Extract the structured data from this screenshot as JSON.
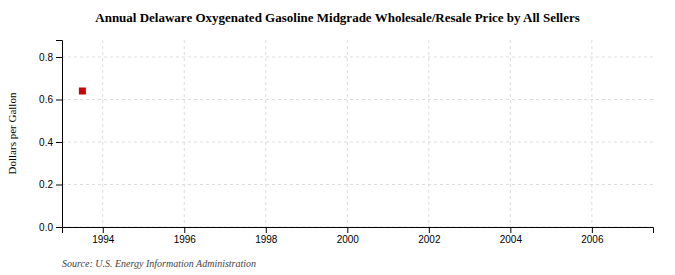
{
  "chart_data": {
    "type": "scatter",
    "title": "Annual Delaware Oxygenated Gasoline Midgrade Wholesale/Resale Price by All Sellers",
    "ylabel": "Dollars per Gallon",
    "source": "Source: U.S. Energy Information Administration",
    "x": [
      1993.5
    ],
    "values": [
      0.64
    ],
    "color": "#cc0000",
    "marker": "square",
    "xlim": [
      1993.0,
      2007.5
    ],
    "xticks": [
      1994,
      1996,
      1998,
      2000,
      2002,
      2004,
      2006
    ],
    "ylim": [
      0.0,
      0.88
    ],
    "yticks": [
      {
        "value": 0.0,
        "label": "0.0"
      },
      0.2,
      0.4,
      0.6,
      0.8
    ],
    "grid": true
  }
}
